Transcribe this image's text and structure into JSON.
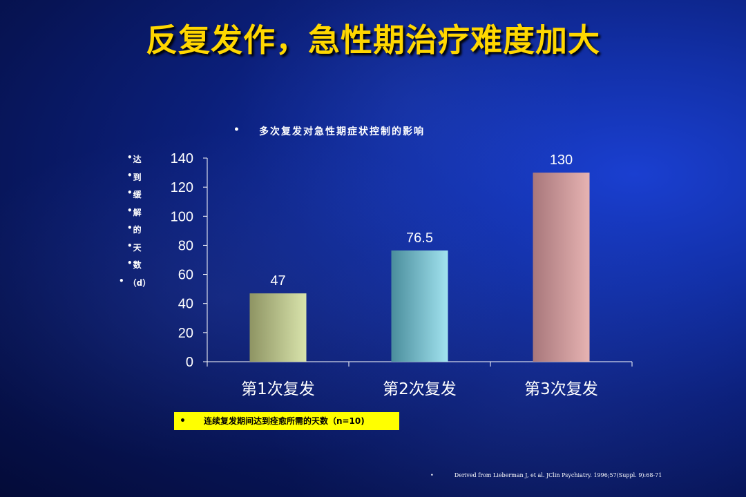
{
  "title": "反复发作，急性期治疗难度加大",
  "chart_data": {
    "type": "bar",
    "title": "多次复发对急性期症状控制的影响",
    "ylabel": [
      "达",
      "到",
      "缓",
      "解",
      "的",
      "天",
      "数",
      "（d）"
    ],
    "categories": [
      "第1次复发",
      "第2次复发",
      "第3次复发"
    ],
    "values": [
      47,
      76.5,
      130
    ],
    "value_labels": [
      "47",
      "76.5",
      "130"
    ],
    "yticks": [
      "0",
      "20",
      "40",
      "60",
      "80",
      "100",
      "120",
      "140"
    ],
    "ylim": [
      0,
      140
    ],
    "grid": false,
    "bar_colors": [
      [
        "#8e9463",
        "#d9e4ac"
      ],
      [
        "#4a8d9c",
        "#a2e3ef"
      ],
      [
        "#a8777b",
        "#e6b3b2"
      ]
    ]
  },
  "note": "连续复发期间达到痊愈所需的天数（n=10)",
  "source": "Derived from Lieberman J, et al. JClin Psychiatry. 1996;57(Suppl. 9):68-71",
  "bullet": "•"
}
